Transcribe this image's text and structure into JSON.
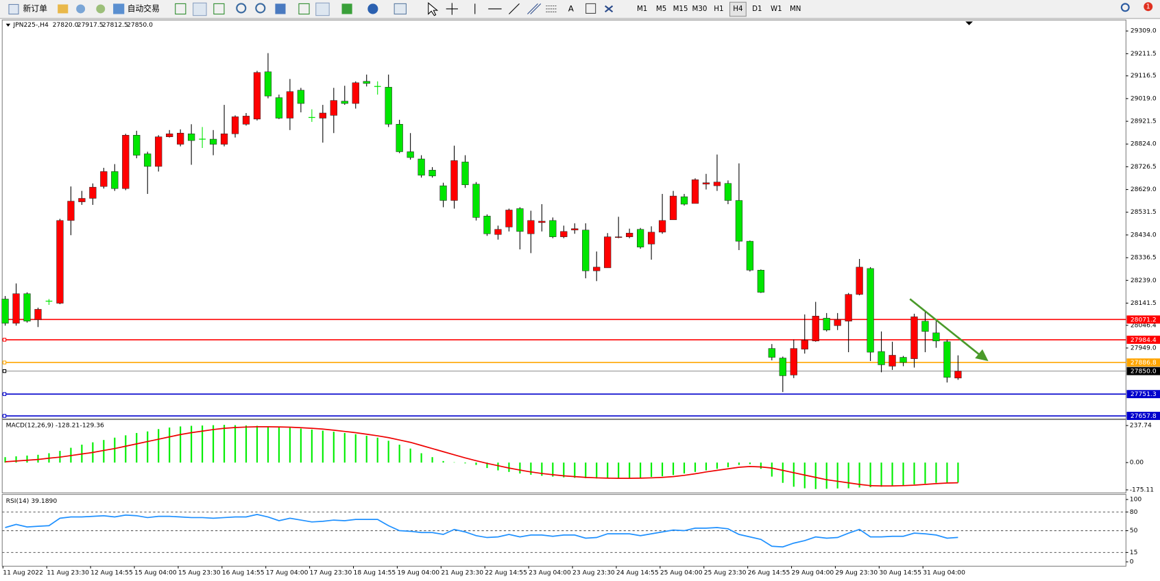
{
  "toolbar": {
    "buttons": [
      "新订单",
      "自动交易"
    ],
    "tools": [
      "A"
    ],
    "timeframes": [
      "M1",
      "M5",
      "M15",
      "M30",
      "H1",
      "H4",
      "D1",
      "W1",
      "MN"
    ],
    "active_timeframe": "H4",
    "notifications": 1
  },
  "chart_data": [
    {
      "type": "candlestick",
      "title": "JPN225-,H4",
      "ohlc_labels": [
        "27820.0",
        "27917.5",
        "27812.5",
        "27850.0"
      ],
      "up_color": "#ff0000",
      "down_color": "#00e600",
      "wick_color": "#000000",
      "categories": [
        "11 Aug 2022",
        null,
        null,
        null,
        "11 Aug 23:30",
        null,
        null,
        null,
        "12 Aug 14:55",
        null,
        null,
        null,
        "15 Aug 04:00",
        null,
        null,
        null,
        "15 Aug 23:30",
        null,
        null,
        null,
        "16 Aug 14:55",
        null,
        null,
        null,
        "17 Aug 04:00",
        null,
        null,
        null,
        "17 Aug 23:30",
        null,
        null,
        null,
        "18 Aug 14:55",
        null,
        null,
        null,
        "19 Aug 04:00",
        null,
        null,
        null,
        "21 Aug 23:30",
        null,
        null,
        null,
        "22 Aug 14:55",
        null,
        null,
        null,
        "23 Aug 04:00",
        null,
        null,
        null,
        "23 Aug 23:30",
        null,
        null,
        null,
        "24 Aug 14:55",
        null,
        null,
        null,
        "25 Aug 04:00",
        null,
        null,
        null,
        "25 Aug 23:30",
        null,
        null,
        null,
        "26 Aug 14:55",
        null,
        null,
        null,
        "29 Aug 04:00",
        null,
        null,
        null,
        "29 Aug 23:30",
        null,
        null,
        null,
        "30 Aug 14:55",
        null,
        null,
        null,
        "31 Aug 04:00",
        null,
        null,
        null
      ],
      "open": [
        28159,
        28055,
        28182,
        28070,
        28150,
        28141,
        28496,
        28576,
        28591,
        28642,
        28706,
        28633,
        28862,
        28782,
        28728,
        28855,
        28823,
        28868,
        28845,
        28845,
        28823,
        28868,
        28909,
        28931,
        29134,
        29023,
        28935,
        29055,
        28938,
        28935,
        28947,
        29008,
        28998,
        29093,
        29071,
        29068,
        28909,
        28791,
        28760,
        28712,
        28645,
        28582,
        28747,
        28652,
        28515,
        28436,
        28468,
        28547,
        28439,
        28487,
        28496,
        28426,
        28455,
        28455,
        28280,
        28293,
        28423,
        28426,
        28458,
        28395,
        28446,
        28499,
        28598,
        28569,
        28652,
        28645,
        28655,
        28582,
        28407,
        28283,
        27947,
        27906,
        27833,
        27944,
        27979,
        28077,
        28045,
        28064,
        28179,
        28290,
        27934,
        27871,
        27909,
        27903,
        28064,
        28014,
        27976,
        27820
      ],
      "high": [
        28172,
        28226,
        28188,
        28122,
        28159,
        28503,
        28642,
        28623,
        28655,
        28722,
        28738,
        28868,
        28881,
        28791,
        28862,
        28884,
        28887,
        28909,
        28897,
        28884,
        28992,
        28947,
        28957,
        29138,
        29214,
        29036,
        29103,
        29065,
        28973,
        28992,
        29065,
        29074,
        29093,
        29122,
        29093,
        29122,
        28928,
        28871,
        28776,
        28725,
        28658,
        28817,
        28776,
        28661,
        28522,
        28474,
        28547,
        28553,
        28538,
        28566,
        28509,
        28474,
        28484,
        28484,
        28363,
        28442,
        28512,
        28461,
        28464,
        28471,
        28610,
        28623,
        28610,
        28677,
        28696,
        28779,
        28668,
        28741,
        28410,
        28286,
        27966,
        27912,
        27985,
        28093,
        28147,
        28099,
        28099,
        28185,
        28331,
        28296,
        28020,
        27976,
        27915,
        28096,
        28106,
        28064,
        27985,
        27917.5
      ],
      "low": [
        28045,
        28045,
        28058,
        28039,
        28134,
        28137,
        28433,
        28563,
        28563,
        28633,
        28623,
        28626,
        28763,
        28610,
        28706,
        28852,
        28814,
        28735,
        28807,
        28776,
        28814,
        28852,
        28903,
        28925,
        29020,
        28931,
        28884,
        28960,
        28919,
        28830,
        28871,
        28992,
        28976,
        29071,
        29036,
        28897,
        28785,
        28757,
        28680,
        28680,
        28553,
        28547,
        28636,
        28496,
        28430,
        28414,
        28449,
        28372,
        28356,
        28449,
        28420,
        28420,
        28439,
        28248,
        28236,
        28293,
        28420,
        28420,
        28375,
        28328,
        28439,
        28499,
        28560,
        28569,
        28629,
        28623,
        28566,
        28369,
        28277,
        28185,
        27896,
        27760,
        27820,
        27925,
        27976,
        28020,
        28026,
        27931,
        28175,
        27893,
        27845,
        27855,
        27871,
        27865,
        27931,
        27950,
        27801,
        27812.5
      ],
      "close": [
        28055,
        28182,
        28064,
        28115,
        28150,
        28496,
        28579,
        28591,
        28639,
        28706,
        28633,
        28862,
        28776,
        28728,
        28855,
        28868,
        28871,
        28839,
        28845,
        28823,
        28868,
        28941,
        28944,
        29131,
        29030,
        28935,
        29049,
        28998,
        28938,
        28957,
        29011,
        28998,
        29087,
        29084,
        29071,
        28909,
        28791,
        28766,
        28690,
        28687,
        28582,
        28753,
        28649,
        28509,
        28439,
        28458,
        28541,
        28449,
        28496,
        28493,
        28426,
        28449,
        28461,
        28280,
        28296,
        28426,
        28426,
        28442,
        28382,
        28446,
        28496,
        28601,
        28566,
        28671,
        28658,
        28661,
        28582,
        28407,
        28283,
        28188,
        27909,
        27830,
        27947,
        27982,
        28086,
        28026,
        28071,
        28179,
        28296,
        27931,
        27877,
        27918,
        27887,
        28083,
        28020,
        27979,
        27823,
        27850
      ],
      "ylim": [
        27648,
        29353
      ],
      "yticks": [
        {
          "value": 29309,
          "label": "29309.0"
        },
        {
          "value": 29211.5,
          "label": "29211.5"
        },
        {
          "value": 29116.5,
          "label": "29116.5"
        },
        {
          "value": 29019,
          "label": "29019.0"
        },
        {
          "value": 28921.5,
          "label": "28921.5"
        },
        {
          "value": 28824,
          "label": "28824.0"
        },
        {
          "value": 28726.5,
          "label": "28726.5"
        },
        {
          "value": 28629,
          "label": "28629.0"
        },
        {
          "value": 28531.5,
          "label": "28531.5"
        },
        {
          "value": 28434,
          "label": "28434.0"
        },
        {
          "value": 28336.5,
          "label": "28336.5"
        },
        {
          "value": 28239,
          "label": "28239.0"
        },
        {
          "value": 28141.5,
          "label": "28141.5"
        },
        {
          "value": 28046.4,
          "label": "28046.4"
        },
        {
          "value": 27949,
          "label": "27949.0"
        }
      ],
      "levels": [
        {
          "value": 28071.2,
          "label": "28071.2",
          "color": "#ff0000"
        },
        {
          "value": 27984.4,
          "label": "27984.4",
          "color": "#ff0000"
        },
        {
          "value": 27886.8,
          "label": "27886.8",
          "color": "#ffa500"
        },
        {
          "value": 27850,
          "label": "27850.0",
          "color": "#000000"
        },
        {
          "value": 27751.3,
          "label": "27751.3",
          "color": "#0000cc"
        },
        {
          "value": 27657.8,
          "label": "27657.8",
          "color": "#0000cc"
        }
      ]
    },
    {
      "type": "macd",
      "title": "MACD(12,26,9)",
      "header_labels": [
        "-128.21",
        "-129.36"
      ],
      "series": [
        {
          "kind": "bar",
          "color": "#00ee00",
          "values": [
            35,
            40,
            45,
            50,
            60,
            75,
            95,
            115,
            130,
            145,
            160,
            175,
            190,
            200,
            215,
            225,
            232,
            236,
            238,
            240,
            242,
            240,
            238,
            236,
            233,
            228,
            224,
            218,
            212,
            205,
            198,
            190,
            182,
            172,
            160,
            140,
            115,
            90,
            60,
            35,
            10,
            2,
            -5,
            -15,
            -35,
            -50,
            -60,
            -70,
            -78,
            -85,
            -90,
            -95,
            -98,
            -100,
            -102,
            -100,
            -100,
            -98,
            -96,
            -92,
            -88,
            -80,
            -70,
            -60,
            -50,
            -40,
            -30,
            -15,
            -10,
            -40,
            -90,
            -130,
            -155,
            -165,
            -170,
            -168,
            -166,
            -165,
            -160,
            -158,
            -155,
            -150,
            -148,
            -140,
            -135,
            -130,
            -128,
            -128.21
          ]
        },
        {
          "kind": "line",
          "color": "#ee0000",
          "values": [
            5,
            10,
            15,
            20,
            28,
            35,
            45,
            55,
            65,
            78,
            90,
            105,
            120,
            135,
            150,
            165,
            180,
            192,
            202,
            212,
            220,
            225,
            228,
            230,
            230,
            229,
            227,
            224,
            220,
            215,
            208,
            200,
            192,
            182,
            172,
            160,
            145,
            130,
            110,
            90,
            70,
            50,
            30,
            12,
            -5,
            -20,
            -35,
            -48,
            -60,
            -70,
            -78,
            -85,
            -90,
            -95,
            -98,
            -100,
            -101,
            -101,
            -100,
            -98,
            -95,
            -90,
            -82,
            -72,
            -60,
            -50,
            -40,
            -30,
            -25,
            -28,
            -35,
            -50,
            -65,
            -80,
            -95,
            -110,
            -120,
            -130,
            -140,
            -148,
            -150,
            -150,
            -148,
            -145,
            -140,
            -135,
            -131,
            -129.36
          ]
        }
      ],
      "ylim": [
        -194.75,
        275.5
      ],
      "yticks": [
        {
          "value": 237.74,
          "label": "237.74"
        },
        {
          "value": 0,
          "label": "0.00"
        },
        {
          "value": -175.11,
          "label": "-175.11"
        }
      ]
    },
    {
      "type": "line",
      "title": "RSI(14)",
      "header_label": "39.1890",
      "color": "#1e90ff",
      "values": [
        55,
        60,
        56,
        57,
        58,
        70,
        72,
        72,
        73,
        74,
        72,
        75,
        74,
        71,
        73,
        73,
        72,
        71,
        71,
        70,
        71,
        72,
        72,
        76,
        72,
        66,
        70,
        67,
        64,
        65,
        67,
        66,
        68,
        68,
        68,
        58,
        50,
        49,
        47,
        47,
        44,
        52,
        48,
        42,
        39,
        40,
        44,
        40,
        43,
        43,
        41,
        43,
        43,
        38,
        39,
        45,
        45,
        45,
        42,
        45,
        48,
        51,
        50,
        54,
        54,
        55,
        53,
        44,
        40,
        36,
        25,
        24,
        30,
        34,
        40,
        38,
        39,
        46,
        52,
        40,
        40,
        41,
        41,
        46,
        45,
        43,
        38,
        39.189
      ],
      "ylim": [
        -7,
        107
      ],
      "yticks": [
        100,
        80,
        50,
        15,
        0
      ],
      "dashed_levels": [
        80,
        50,
        15
      ]
    }
  ]
}
